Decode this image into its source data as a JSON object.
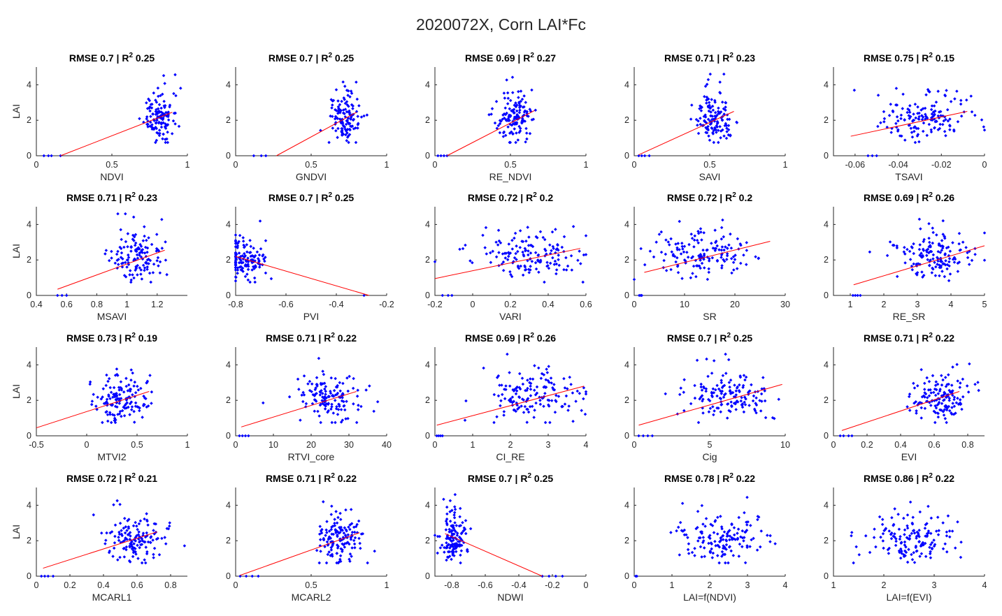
{
  "title": "2020072X, Corn LAI*Fc",
  "colors": {
    "points": "#0000ff",
    "fit": "#ff0000",
    "axis": "#262626"
  },
  "chart_data": [
    {
      "type": "scatter",
      "title": "RMSE 0.7 | R² 0.25",
      "rmse": "0.7",
      "r2": "0.25",
      "xlabel": "NDVI",
      "ylabel": "LAI",
      "xlim": [
        0,
        1
      ],
      "ylim": [
        0,
        5
      ],
      "xticks": [
        "0",
        "0.5",
        "1"
      ],
      "xtick_values": [
        0,
        0.5,
        1
      ],
      "yticks": [
        "0",
        "2",
        "4"
      ],
      "ytick_values": [
        0,
        2,
        4
      ],
      "cloud": {
        "x_center": 0.82,
        "x_spread": 0.05,
        "y_center": 2.0,
        "y_spread": 0.8,
        "n": 130
      },
      "zeros": [
        0.05,
        0.08,
        0.1,
        0.16
      ],
      "fit_line": [
        [
          0.16,
          0.0
        ],
        [
          0.9,
          2.45
        ]
      ]
    },
    {
      "type": "scatter",
      "title": "RMSE 0.7 | R² 0.25",
      "rmse": "0.7",
      "r2": "0.25",
      "xlabel": "GNDVI",
      "ylabel": "",
      "xlim": [
        0,
        1
      ],
      "ylim": [
        0,
        5
      ],
      "xticks": [
        "0",
        "0.5",
        "1"
      ],
      "xtick_values": [
        0,
        0.5,
        1
      ],
      "yticks": [
        "0",
        "2",
        "4"
      ],
      "ytick_values": [
        0,
        2,
        4
      ],
      "cloud": {
        "x_center": 0.73,
        "x_spread": 0.05,
        "y_center": 2.0,
        "y_spread": 0.8,
        "n": 130
      },
      "zeros": [
        0.12,
        0.17,
        0.2
      ],
      "fit_line": [
        [
          0.27,
          0.0
        ],
        [
          0.8,
          2.45
        ]
      ]
    },
    {
      "type": "scatter",
      "title": "RMSE 0.69 | R² 0.27",
      "rmse": "0.69",
      "r2": "0.27",
      "xlabel": "RE_NDVI",
      "ylabel": "",
      "xlim": [
        0,
        1
      ],
      "ylim": [
        0,
        5
      ],
      "xticks": [
        "0",
        "0.5",
        "1"
      ],
      "xtick_values": [
        0,
        0.5,
        1
      ],
      "yticks": [
        "0",
        "2",
        "4"
      ],
      "ytick_values": [
        0,
        2,
        4
      ],
      "cloud": {
        "x_center": 0.54,
        "x_spread": 0.06,
        "y_center": 2.0,
        "y_spread": 0.8,
        "n": 130
      },
      "zeros": [
        0.02,
        0.04,
        0.06,
        0.08
      ],
      "fit_line": [
        [
          0.08,
          0.0
        ],
        [
          0.66,
          2.55
        ]
      ]
    },
    {
      "type": "scatter",
      "title": "RMSE 0.71 | R² 0.23",
      "rmse": "0.71",
      "r2": "0.23",
      "xlabel": "SAVI",
      "ylabel": "",
      "xlim": [
        0,
        1
      ],
      "ylim": [
        0,
        5
      ],
      "xticks": [
        "0",
        "0.5",
        "1"
      ],
      "xtick_values": [
        0,
        0.5,
        1
      ],
      "yticks": [
        "0",
        "2",
        "4"
      ],
      "ytick_values": [
        0,
        2,
        4
      ],
      "cloud": {
        "x_center": 0.55,
        "x_spread": 0.06,
        "y_center": 2.0,
        "y_spread": 0.8,
        "n": 130
      },
      "zeros": [
        0.03,
        0.05,
        0.07,
        0.1
      ],
      "fit_line": [
        [
          0.03,
          0.05
        ],
        [
          0.66,
          2.5
        ]
      ]
    },
    {
      "type": "scatter",
      "title": "RMSE 0.75 | R² 0.15",
      "rmse": "0.75",
      "r2": "0.15",
      "xlabel": "TSAVI",
      "ylabel": "",
      "xlim": [
        -0.07,
        0
      ],
      "ylim": [
        0,
        5
      ],
      "xticks": [
        "-0.06",
        "-0.04",
        "-0.02",
        "0"
      ],
      "xtick_values": [
        -0.06,
        -0.04,
        -0.02,
        0
      ],
      "yticks": [
        "0",
        "2",
        "4"
      ],
      "ytick_values": [
        0,
        2,
        4
      ],
      "cloud": {
        "x_center": -0.028,
        "x_spread": 0.011,
        "y_center": 2.0,
        "y_spread": 0.75,
        "n": 150
      },
      "zeros": [
        -0.054,
        -0.052,
        -0.05
      ],
      "fit_line": [
        [
          -0.062,
          1.1
        ],
        [
          -0.008,
          2.5
        ]
      ]
    },
    {
      "type": "scatter",
      "title": "RMSE 0.71 | R² 0.23",
      "rmse": "0.71",
      "r2": "0.23",
      "xlabel": "MSAVI",
      "ylabel": "LAI",
      "xlim": [
        0.4,
        1.4
      ],
      "ylim": [
        0,
        5
      ],
      "xticks": [
        "0.4",
        "0.6",
        "0.8",
        "1",
        "1.2"
      ],
      "xtick_values": [
        0.4,
        0.6,
        0.8,
        1,
        1.2
      ],
      "yticks": [
        "0",
        "2",
        "4"
      ],
      "ytick_values": [
        0,
        2,
        4
      ],
      "cloud": {
        "x_center": 1.08,
        "x_spread": 0.1,
        "y_center": 2.0,
        "y_spread": 0.8,
        "n": 130
      },
      "zeros": [
        0.54,
        0.57,
        0.6
      ],
      "fit_line": [
        [
          0.54,
          0.35
        ],
        [
          1.25,
          2.55
        ]
      ]
    },
    {
      "type": "scatter",
      "title": "RMSE 0.7 | R² 0.25",
      "rmse": "0.7",
      "r2": "0.25",
      "xlabel": "PVI",
      "ylabel": "",
      "xlim": [
        -0.8,
        -0.2
      ],
      "ylim": [
        0,
        5
      ],
      "xticks": [
        "-0.8",
        "-0.6",
        "-0.4",
        "-0.2"
      ],
      "xtick_values": [
        -0.8,
        -0.6,
        -0.4,
        -0.2
      ],
      "yticks": [
        "0",
        "2",
        "4"
      ],
      "ytick_values": [
        0,
        2,
        4
      ],
      "cloud": {
        "x_center": -0.76,
        "x_spread": 0.04,
        "y_center": 2.0,
        "y_spread": 0.75,
        "n": 130
      },
      "zeros": [
        -0.29
      ],
      "fit_line": [
        [
          -0.8,
          2.2
        ],
        [
          -0.27,
          0.0
        ]
      ]
    },
    {
      "type": "scatter",
      "title": "RMSE 0.72 | R² 0.2",
      "rmse": "0.72",
      "r2": "0.2",
      "xlabel": "VARI",
      "ylabel": "",
      "xlim": [
        -0.2,
        0.6
      ],
      "ylim": [
        0,
        5
      ],
      "xticks": [
        "-0.2",
        "0",
        "0.2",
        "0.4",
        "0.6"
      ],
      "xtick_values": [
        -0.2,
        0,
        0.2,
        0.4,
        0.6
      ],
      "yticks": [
        "0",
        "2",
        "4"
      ],
      "ytick_values": [
        0,
        2,
        4
      ],
      "cloud": {
        "x_center": 0.3,
        "x_spread": 0.14,
        "y_center": 2.1,
        "y_spread": 0.75,
        "n": 150
      },
      "zeros": [
        -0.16,
        -0.13,
        -0.11
      ],
      "fit_line": [
        [
          -0.2,
          0.95
        ],
        [
          0.57,
          2.65
        ]
      ]
    },
    {
      "type": "scatter",
      "title": "RMSE 0.72 | R² 0.2",
      "rmse": "0.72",
      "r2": "0.2",
      "xlabel": "SR",
      "ylabel": "",
      "xlim": [
        0,
        30
      ],
      "ylim": [
        0,
        5
      ],
      "xticks": [
        "0",
        "10",
        "20",
        "30"
      ],
      "xtick_values": [
        0,
        10,
        20,
        30
      ],
      "yticks": [
        "0",
        "2",
        "4"
      ],
      "ytick_values": [
        0,
        2,
        4
      ],
      "cloud": {
        "x_center": 13,
        "x_spread": 5,
        "y_center": 2.1,
        "y_spread": 0.75,
        "n": 150
      },
      "zeros": [
        1.0,
        1.3,
        1.5
      ],
      "fit_line": [
        [
          2,
          1.3
        ],
        [
          27,
          3.05
        ]
      ]
    },
    {
      "type": "scatter",
      "title": "RMSE 0.69 | R² 0.26",
      "rmse": "0.69",
      "r2": "0.26",
      "xlabel": "RE_SR",
      "ylabel": "",
      "xlim": [
        0.5,
        5
      ],
      "ylim": [
        0,
        5
      ],
      "xticks": [
        "1",
        "2",
        "3",
        "4",
        "5"
      ],
      "xtick_values": [
        1,
        2,
        3,
        4,
        5
      ],
      "yticks": [
        "0",
        "2",
        "4"
      ],
      "ytick_values": [
        0,
        2,
        4
      ],
      "cloud": {
        "x_center": 3.6,
        "x_spread": 0.6,
        "y_center": 2.1,
        "y_spread": 0.8,
        "n": 150
      },
      "zeros": [
        1.08,
        1.15,
        1.22,
        1.3
      ],
      "fit_line": [
        [
          1.1,
          0.6
        ],
        [
          5,
          2.8
        ]
      ]
    },
    {
      "type": "scatter",
      "title": "RMSE 0.73 | R² 0.19",
      "rmse": "0.73",
      "r2": "0.19",
      "xlabel": "MTVI2",
      "ylabel": "LAI",
      "xlim": [
        -0.5,
        1
      ],
      "ylim": [
        0,
        5
      ],
      "xticks": [
        "-0.5",
        "0",
        "0.5",
        "1"
      ],
      "xtick_values": [
        -0.5,
        0,
        0.5,
        1
      ],
      "yticks": [
        "0",
        "2",
        "4"
      ],
      "ytick_values": [
        0,
        2,
        4
      ],
      "cloud": {
        "x_center": 0.36,
        "x_spread": 0.13,
        "y_center": 2.0,
        "y_spread": 0.8,
        "n": 140
      },
      "zeros": [],
      "fit_line": [
        [
          -0.5,
          0.45
        ],
        [
          0.62,
          2.5
        ]
      ]
    },
    {
      "type": "scatter",
      "title": "RMSE 0.71 | R² 0.22",
      "rmse": "0.71",
      "r2": "0.22",
      "xlabel": "RTVI_core",
      "ylabel": "",
      "xlim": [
        0,
        40
      ],
      "ylim": [
        0,
        5
      ],
      "xticks": [
        "0",
        "10",
        "20",
        "30",
        "40"
      ],
      "xtick_values": [
        0,
        10,
        20,
        30,
        40
      ],
      "yticks": [
        "0",
        "2",
        "4"
      ],
      "ytick_values": [
        0,
        2,
        4
      ],
      "cloud": {
        "x_center": 25,
        "x_spread": 4.5,
        "y_center": 2.0,
        "y_spread": 0.8,
        "n": 140
      },
      "zeros": [
        1.0,
        1.8,
        2.6,
        3.4
      ],
      "fit_line": [
        [
          1.5,
          0.5
        ],
        [
          32,
          2.5
        ]
      ]
    },
    {
      "type": "scatter",
      "title": "RMSE 0.69 | R² 0.26",
      "rmse": "0.69",
      "r2": "0.26",
      "xlabel": "CI_RE",
      "ylabel": "",
      "xlim": [
        0,
        4
      ],
      "ylim": [
        0,
        5
      ],
      "xticks": [
        "0",
        "1",
        "2",
        "3",
        "4"
      ],
      "xtick_values": [
        0,
        1,
        2,
        3,
        4
      ],
      "yticks": [
        "0",
        "2",
        "4"
      ],
      "ytick_values": [
        0,
        2,
        4
      ],
      "cloud": {
        "x_center": 2.6,
        "x_spread": 0.65,
        "y_center": 2.1,
        "y_spread": 0.8,
        "n": 150
      },
      "zeros": [
        0.05,
        0.1,
        0.15,
        0.2
      ],
      "fit_line": [
        [
          0.05,
          0.6
        ],
        [
          3.95,
          2.8
        ]
      ]
    },
    {
      "type": "scatter",
      "title": "RMSE 0.7 | R² 0.25",
      "rmse": "0.7",
      "r2": "0.25",
      "xlabel": "Cig",
      "ylabel": "",
      "xlim": [
        0,
        10
      ],
      "ylim": [
        0,
        5
      ],
      "xticks": [
        "0",
        "5",
        "10"
      ],
      "xtick_values": [
        0,
        5,
        10
      ],
      "yticks": [
        "0",
        "2",
        "4"
      ],
      "ytick_values": [
        0,
        2,
        4
      ],
      "cloud": {
        "x_center": 6.2,
        "x_spread": 1.6,
        "y_center": 2.1,
        "y_spread": 0.8,
        "n": 150
      },
      "zeros": [
        0.3,
        0.6,
        0.9,
        1.2
      ],
      "fit_line": [
        [
          0.3,
          0.6
        ],
        [
          9.8,
          2.9
        ]
      ]
    },
    {
      "type": "scatter",
      "title": "RMSE 0.71 | R² 0.22",
      "rmse": "0.71",
      "r2": "0.22",
      "xlabel": "EVI",
      "ylabel": "",
      "xlim": [
        0,
        0.9
      ],
      "ylim": [
        0,
        5
      ],
      "xticks": [
        "0",
        "0.2",
        "0.4",
        "0.6",
        "0.8"
      ],
      "xtick_values": [
        0,
        0.2,
        0.4,
        0.6,
        0.8
      ],
      "yticks": [
        "0",
        "2",
        "4"
      ],
      "ytick_values": [
        0,
        2,
        4
      ],
      "cloud": {
        "x_center": 0.63,
        "x_spread": 0.09,
        "y_center": 2.0,
        "y_spread": 0.8,
        "n": 140
      },
      "zeros": [
        0.04,
        0.06,
        0.09,
        0.11
      ],
      "fit_line": [
        [
          0.05,
          0.3
        ],
        [
          0.75,
          2.5
        ]
      ]
    },
    {
      "type": "scatter",
      "title": "RMSE 0.72 | R² 0.21",
      "rmse": "0.72",
      "r2": "0.21",
      "xlabel": "MCARL1",
      "ylabel": "LAI",
      "xlim": [
        0,
        0.9
      ],
      "ylim": [
        0,
        5
      ],
      "xticks": [
        "0",
        "0.2",
        "0.4",
        "0.6",
        "0.8"
      ],
      "xtick_values": [
        0,
        0.2,
        0.4,
        0.6,
        0.8
      ],
      "yticks": [
        "0",
        "2",
        "4"
      ],
      "ytick_values": [
        0,
        2,
        4
      ],
      "cloud": {
        "x_center": 0.58,
        "x_spread": 0.09,
        "y_center": 2.0,
        "y_spread": 0.8,
        "n": 140
      },
      "zeros": [
        0.03,
        0.05,
        0.07,
        0.1
      ],
      "fit_line": [
        [
          0.04,
          0.45
        ],
        [
          0.72,
          2.5
        ]
      ]
    },
    {
      "type": "scatter",
      "title": "RMSE 0.71 | R² 0.22",
      "rmse": "0.71",
      "r2": "0.22",
      "xlabel": "MCARL2",
      "ylabel": "",
      "xlim": [
        0,
        1
      ],
      "ylim": [
        0,
        5
      ],
      "xticks": [
        "0",
        "0.5",
        "1"
      ],
      "xtick_values": [
        0,
        0.5,
        1
      ],
      "yticks": [
        "0",
        "2",
        "4"
      ],
      "ytick_values": [
        0,
        2,
        4
      ],
      "cloud": {
        "x_center": 0.68,
        "x_spread": 0.08,
        "y_center": 2.0,
        "y_spread": 0.8,
        "n": 140
      },
      "zeros": [
        0.03,
        0.07,
        0.11,
        0.15
      ],
      "fit_line": [
        [
          0.03,
          0.05
        ],
        [
          0.82,
          2.45
        ]
      ]
    },
    {
      "type": "scatter",
      "title": "RMSE 0.7 | R² 0.25",
      "rmse": "0.7",
      "r2": "0.25",
      "xlabel": "NDWI",
      "ylabel": "",
      "xlim": [
        -0.9,
        0
      ],
      "ylim": [
        0,
        5
      ],
      "xticks": [
        "-0.8",
        "-0.6",
        "-0.4",
        "-0.2",
        "0"
      ],
      "xtick_values": [
        -0.8,
        -0.6,
        -0.4,
        -0.2,
        0
      ],
      "yticks": [
        "0",
        "2",
        "4"
      ],
      "ytick_values": [
        0,
        2,
        4
      ],
      "cloud": {
        "x_center": -0.79,
        "x_spread": 0.04,
        "y_center": 2.0,
        "y_spread": 0.75,
        "n": 130
      },
      "zeros": [
        -0.26,
        -0.22,
        -0.18,
        -0.14
      ],
      "fit_line": [
        [
          -0.84,
          2.4
        ],
        [
          -0.26,
          0.0
        ]
      ]
    },
    {
      "type": "scatter",
      "title": "RMSE 0.78 | R² 0.22",
      "rmse": "0.78",
      "r2": "0.22",
      "xlabel": "LAI=f(NDVI)",
      "ylabel": "",
      "xlim": [
        0,
        4
      ],
      "ylim": [
        0,
        5
      ],
      "xticks": [
        "0",
        "1",
        "2",
        "3",
        "4"
      ],
      "xtick_values": [
        0,
        1,
        2,
        3,
        4
      ],
      "yticks": [
        "0",
        "2",
        "4"
      ],
      "ytick_values": [
        0,
        2,
        4
      ],
      "cloud": {
        "x_center": 2.3,
        "x_spread": 0.6,
        "y_center": 2.0,
        "y_spread": 0.8,
        "n": 150
      },
      "zeros": [
        0.04,
        0.07
      ],
      "fit_line": null
    },
    {
      "type": "scatter",
      "title": "RMSE 0.86 | R² 0.22",
      "rmse": "0.86",
      "r2": "0.22",
      "xlabel": "LAI=f(EVI)",
      "ylabel": "",
      "xlim": [
        1,
        4
      ],
      "ylim": [
        0,
        5
      ],
      "xticks": [
        "1",
        "2",
        "3",
        "4"
      ],
      "xtick_values": [
        1,
        2,
        3,
        4
      ],
      "yticks": [
        "0",
        "2",
        "4"
      ],
      "ytick_values": [
        0,
        2,
        4
      ],
      "cloud": {
        "x_center": 2.5,
        "x_spread": 0.45,
        "y_center": 2.0,
        "y_spread": 0.75,
        "n": 150
      },
      "zeros": [],
      "fit_line": null
    }
  ]
}
